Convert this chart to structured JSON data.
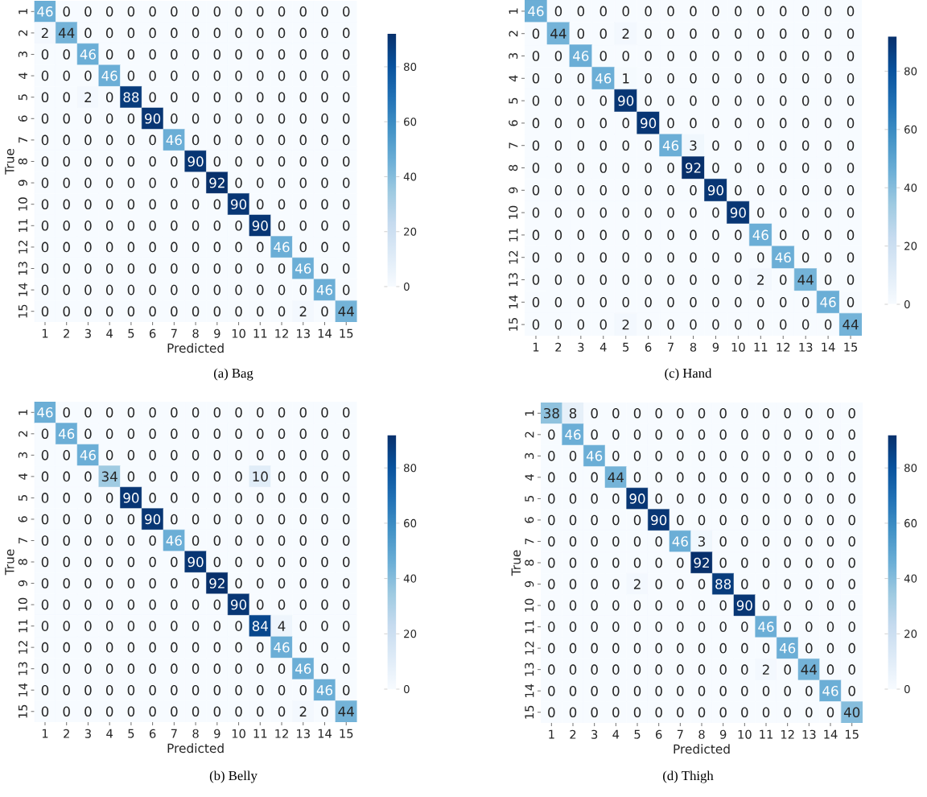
{
  "chart_data": [
    {
      "type": "heatmap",
      "title": "(a) Bag",
      "xlabel": "Predicted",
      "ylabel": "True",
      "categories": [
        "1",
        "2",
        "3",
        "4",
        "5",
        "6",
        "7",
        "8",
        "9",
        "10",
        "11",
        "12",
        "13",
        "14",
        "15"
      ],
      "y_categories": [
        "1",
        "2",
        "3",
        "4",
        "5",
        "6",
        "7",
        "8",
        "9",
        "10",
        "11",
        "12",
        "13",
        "14",
        "15"
      ],
      "clim": [
        0,
        92
      ],
      "cticks": [
        0,
        20,
        40,
        60,
        80
      ],
      "data_labels": true,
      "cells": [
        [
          46,
          0,
          0,
          0,
          0,
          0,
          0,
          0,
          0,
          0,
          0,
          0,
          0,
          0,
          0
        ],
        [
          2,
          44,
          0,
          0,
          0,
          0,
          0,
          0,
          0,
          0,
          0,
          0,
          0,
          0,
          0
        ],
        [
          0,
          0,
          46,
          0,
          0,
          0,
          0,
          0,
          0,
          0,
          0,
          0,
          0,
          0,
          0
        ],
        [
          0,
          0,
          0,
          46,
          0,
          0,
          0,
          0,
          0,
          0,
          0,
          0,
          0,
          0,
          0
        ],
        [
          0,
          0,
          2,
          0,
          88,
          0,
          0,
          0,
          0,
          0,
          0,
          0,
          0,
          0,
          0
        ],
        [
          0,
          0,
          0,
          0,
          0,
          90,
          0,
          0,
          0,
          0,
          0,
          0,
          0,
          0,
          0
        ],
        [
          0,
          0,
          0,
          0,
          0,
          0,
          46,
          0,
          0,
          0,
          0,
          0,
          0,
          0,
          0
        ],
        [
          0,
          0,
          0,
          0,
          0,
          0,
          0,
          90,
          0,
          0,
          0,
          0,
          0,
          0,
          0
        ],
        [
          0,
          0,
          0,
          0,
          0,
          0,
          0,
          0,
          92,
          0,
          0,
          0,
          0,
          0,
          0
        ],
        [
          0,
          0,
          0,
          0,
          0,
          0,
          0,
          0,
          0,
          90,
          0,
          0,
          0,
          0,
          0
        ],
        [
          0,
          0,
          0,
          0,
          0,
          0,
          0,
          0,
          0,
          0,
          90,
          0,
          0,
          0,
          0
        ],
        [
          0,
          0,
          0,
          0,
          0,
          0,
          0,
          0,
          0,
          0,
          0,
          46,
          0,
          0,
          0
        ],
        [
          0,
          0,
          0,
          0,
          0,
          0,
          0,
          0,
          0,
          0,
          0,
          0,
          46,
          0,
          0
        ],
        [
          0,
          0,
          0,
          0,
          0,
          0,
          0,
          0,
          0,
          0,
          0,
          0,
          0,
          46,
          0
        ],
        [
          0,
          0,
          0,
          0,
          0,
          0,
          0,
          0,
          0,
          0,
          0,
          0,
          2,
          0,
          44
        ]
      ]
    },
    {
      "type": "heatmap",
      "title": "(c) Hand",
      "categories": [
        "1",
        "2",
        "3",
        "4",
        "5",
        "6",
        "7",
        "8",
        "9",
        "10",
        "11",
        "12",
        "13",
        "14",
        "15"
      ],
      "y_categories": [
        "1",
        "2",
        "3",
        "4",
        "5",
        "6",
        "7",
        "8",
        "9",
        "10",
        "11",
        "12",
        "13",
        "14",
        "15"
      ],
      "clim": [
        0,
        92
      ],
      "cticks": [
        0,
        20,
        40,
        60,
        80
      ],
      "data_labels": true,
      "cells": [
        [
          46,
          0,
          0,
          0,
          0,
          0,
          0,
          0,
          0,
          0,
          0,
          0,
          0,
          0,
          0
        ],
        [
          0,
          44,
          0,
          0,
          2,
          0,
          0,
          0,
          0,
          0,
          0,
          0,
          0,
          0,
          0
        ],
        [
          0,
          0,
          46,
          0,
          0,
          0,
          0,
          0,
          0,
          0,
          0,
          0,
          0,
          0,
          0
        ],
        [
          0,
          0,
          0,
          46,
          1,
          0,
          0,
          0,
          0,
          0,
          0,
          0,
          0,
          0,
          0
        ],
        [
          0,
          0,
          0,
          0,
          90,
          0,
          0,
          0,
          0,
          0,
          0,
          0,
          0,
          0,
          0
        ],
        [
          0,
          0,
          0,
          0,
          0,
          90,
          0,
          0,
          0,
          0,
          0,
          0,
          0,
          0,
          0
        ],
        [
          0,
          0,
          0,
          0,
          0,
          0,
          46,
          3,
          0,
          0,
          0,
          0,
          0,
          0,
          0
        ],
        [
          0,
          0,
          0,
          0,
          0,
          0,
          0,
          92,
          0,
          0,
          0,
          0,
          0,
          0,
          0
        ],
        [
          0,
          0,
          0,
          0,
          0,
          0,
          0,
          0,
          90,
          0,
          0,
          0,
          0,
          0,
          0
        ],
        [
          0,
          0,
          0,
          0,
          0,
          0,
          0,
          0,
          0,
          90,
          0,
          0,
          0,
          0,
          0
        ],
        [
          0,
          0,
          0,
          0,
          0,
          0,
          0,
          0,
          0,
          0,
          46,
          0,
          0,
          0,
          0
        ],
        [
          0,
          0,
          0,
          0,
          0,
          0,
          0,
          0,
          0,
          0,
          0,
          46,
          0,
          0,
          0
        ],
        [
          0,
          0,
          0,
          0,
          0,
          0,
          0,
          0,
          0,
          0,
          2,
          0,
          44,
          0,
          0
        ],
        [
          0,
          0,
          0,
          0,
          0,
          0,
          0,
          0,
          0,
          0,
          0,
          0,
          0,
          46,
          0
        ],
        [
          0,
          0,
          0,
          0,
          2,
          0,
          0,
          0,
          0,
          0,
          0,
          0,
          0,
          0,
          44
        ]
      ]
    },
    {
      "type": "heatmap",
      "title": "(b) Belly",
      "xlabel": "Predicted",
      "ylabel": "True",
      "categories": [
        "1",
        "2",
        "3",
        "4",
        "5",
        "6",
        "7",
        "8",
        "9",
        "10",
        "11",
        "12",
        "13",
        "14",
        "15"
      ],
      "y_categories": [
        "1",
        "2",
        "3",
        "4",
        "5",
        "6",
        "7",
        "8",
        "9",
        "10",
        "11",
        "12",
        "13",
        "14",
        "15"
      ],
      "clim": [
        0,
        92
      ],
      "cticks": [
        0,
        20,
        40,
        60,
        80
      ],
      "data_labels": true,
      "cells": [
        [
          46,
          0,
          0,
          0,
          0,
          0,
          0,
          0,
          0,
          0,
          0,
          0,
          0,
          0,
          0
        ],
        [
          0,
          46,
          0,
          0,
          0,
          0,
          0,
          0,
          0,
          0,
          0,
          0,
          0,
          0,
          0
        ],
        [
          0,
          0,
          46,
          0,
          0,
          0,
          0,
          0,
          0,
          0,
          0,
          0,
          0,
          0,
          0
        ],
        [
          0,
          0,
          0,
          34,
          0,
          0,
          0,
          0,
          0,
          0,
          10,
          0,
          0,
          0,
          0
        ],
        [
          0,
          0,
          0,
          0,
          90,
          0,
          0,
          0,
          0,
          0,
          0,
          0,
          0,
          0,
          0
        ],
        [
          0,
          0,
          0,
          0,
          0,
          90,
          0,
          0,
          0,
          0,
          0,
          0,
          0,
          0,
          0
        ],
        [
          0,
          0,
          0,
          0,
          0,
          0,
          46,
          0,
          0,
          0,
          0,
          0,
          0,
          0,
          0
        ],
        [
          0,
          0,
          0,
          0,
          0,
          0,
          0,
          90,
          0,
          0,
          0,
          0,
          0,
          0,
          0
        ],
        [
          0,
          0,
          0,
          0,
          0,
          0,
          0,
          0,
          92,
          0,
          0,
          0,
          0,
          0,
          0
        ],
        [
          0,
          0,
          0,
          0,
          0,
          0,
          0,
          0,
          0,
          90,
          0,
          0,
          0,
          0,
          0
        ],
        [
          0,
          0,
          0,
          0,
          0,
          0,
          0,
          0,
          0,
          0,
          84,
          4,
          0,
          0,
          0
        ],
        [
          0,
          0,
          0,
          0,
          0,
          0,
          0,
          0,
          0,
          0,
          0,
          46,
          0,
          0,
          0
        ],
        [
          0,
          0,
          0,
          0,
          0,
          0,
          0,
          0,
          0,
          0,
          0,
          0,
          46,
          0,
          0
        ],
        [
          0,
          0,
          0,
          0,
          0,
          0,
          0,
          0,
          0,
          0,
          0,
          0,
          0,
          46,
          0
        ],
        [
          0,
          0,
          0,
          0,
          0,
          0,
          0,
          0,
          0,
          0,
          0,
          0,
          2,
          0,
          44
        ]
      ]
    },
    {
      "type": "heatmap",
      "title": "(d) Thigh",
      "xlabel": "Predicted",
      "ylabel": "True",
      "categories": [
        "1",
        "2",
        "3",
        "4",
        "5",
        "6",
        "7",
        "8",
        "9",
        "10",
        "11",
        "12",
        "13",
        "14",
        "15"
      ],
      "y_categories": [
        "1",
        "2",
        "3",
        "4",
        "5",
        "6",
        "7",
        "8",
        "9",
        "10",
        "11",
        "12",
        "13",
        "14",
        "15"
      ],
      "clim": [
        0,
        92
      ],
      "cticks": [
        0,
        20,
        40,
        60,
        80
      ],
      "data_labels": true,
      "cells": [
        [
          38,
          8,
          0,
          0,
          0,
          0,
          0,
          0,
          0,
          0,
          0,
          0,
          0,
          0,
          0
        ],
        [
          0,
          46,
          0,
          0,
          0,
          0,
          0,
          0,
          0,
          0,
          0,
          0,
          0,
          0,
          0
        ],
        [
          0,
          0,
          46,
          0,
          0,
          0,
          0,
          0,
          0,
          0,
          0,
          0,
          0,
          0,
          0
        ],
        [
          0,
          0,
          0,
          44,
          0,
          0,
          0,
          0,
          0,
          0,
          0,
          0,
          0,
          0,
          0
        ],
        [
          0,
          0,
          0,
          0,
          90,
          0,
          0,
          0,
          0,
          0,
          0,
          0,
          0,
          0,
          0
        ],
        [
          0,
          0,
          0,
          0,
          0,
          90,
          0,
          0,
          0,
          0,
          0,
          0,
          0,
          0,
          0
        ],
        [
          0,
          0,
          0,
          0,
          0,
          0,
          46,
          3,
          0,
          0,
          0,
          0,
          0,
          0,
          0
        ],
        [
          0,
          0,
          0,
          0,
          0,
          0,
          0,
          92,
          0,
          0,
          0,
          0,
          0,
          0,
          0
        ],
        [
          0,
          0,
          0,
          0,
          2,
          0,
          0,
          0,
          88,
          0,
          0,
          0,
          0,
          0,
          0
        ],
        [
          0,
          0,
          0,
          0,
          0,
          0,
          0,
          0,
          0,
          90,
          0,
          0,
          0,
          0,
          0
        ],
        [
          0,
          0,
          0,
          0,
          0,
          0,
          0,
          0,
          0,
          0,
          46,
          0,
          0,
          0,
          0
        ],
        [
          0,
          0,
          0,
          0,
          0,
          0,
          0,
          0,
          0,
          0,
          0,
          46,
          0,
          0,
          0
        ],
        [
          0,
          0,
          0,
          0,
          0,
          0,
          0,
          0,
          0,
          0,
          2,
          0,
          44,
          0,
          0
        ],
        [
          0,
          0,
          0,
          0,
          0,
          0,
          0,
          0,
          0,
          0,
          0,
          0,
          0,
          46,
          0
        ],
        [
          0,
          0,
          0,
          0,
          0,
          0,
          0,
          0,
          0,
          0,
          0,
          0,
          0,
          0,
          40
        ]
      ]
    }
  ]
}
